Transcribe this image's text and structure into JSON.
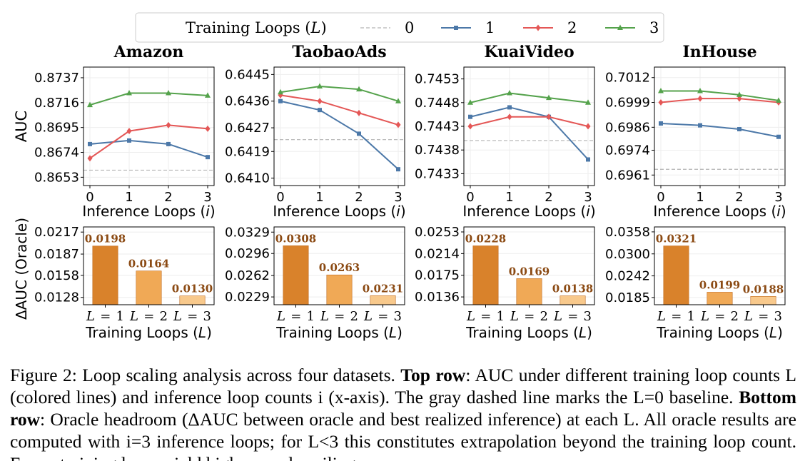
{
  "legend": {
    "title": "Training Loops (L)",
    "entries": [
      {
        "label": "0",
        "color": "#b3b3b3",
        "marker": "none",
        "dashed": true
      },
      {
        "label": "1",
        "color": "#4c78a8",
        "marker": "square"
      },
      {
        "label": "2",
        "color": "#e45756",
        "marker": "diamond"
      },
      {
        "label": "3",
        "color": "#54a24b",
        "marker": "triangle"
      }
    ]
  },
  "chart_data": [
    {
      "type": "line",
      "title": "Amazon",
      "xlabel": "Inference Loops (i)",
      "ylabel": "AUC",
      "x": [
        0,
        1,
        2,
        3
      ],
      "yticks": [
        "0.8737",
        "0.8716",
        "0.8695",
        "0.8674",
        "0.8653"
      ],
      "ylim": [
        0.8646,
        0.8746
      ],
      "baseline": {
        "name": "0",
        "value": 0.8659
      },
      "series": [
        {
          "name": "1",
          "values": [
            0.8681,
            0.8684,
            0.8681,
            0.867
          ]
        },
        {
          "name": "2",
          "values": [
            0.8669,
            0.8692,
            0.8697,
            0.8694
          ]
        },
        {
          "name": "3",
          "values": [
            0.8714,
            0.8724,
            0.8724,
            0.8722
          ]
        }
      ]
    },
    {
      "type": "line",
      "title": "TaobaoAds",
      "xlabel": "Inference Loops (i)",
      "ylabel": "",
      "x": [
        0,
        1,
        2,
        3
      ],
      "yticks": [
        "0.6445",
        "0.6436",
        "0.6427",
        "0.6419",
        "0.6410"
      ],
      "ylim": [
        0.64075,
        0.64475
      ],
      "baseline": {
        "name": "0",
        "value": 0.6423
      },
      "series": [
        {
          "name": "1",
          "values": [
            0.6436,
            0.6433,
            0.6425,
            0.6413
          ]
        },
        {
          "name": "2",
          "values": [
            0.6438,
            0.6436,
            0.6432,
            0.6428
          ]
        },
        {
          "name": "3",
          "values": [
            0.6439,
            0.6441,
            0.644,
            0.6436
          ]
        }
      ]
    },
    {
      "type": "line",
      "title": "KuaiVideo",
      "xlabel": "Inference Loops (i)",
      "ylabel": "",
      "x": [
        0,
        1,
        2,
        3
      ],
      "yticks": [
        "0.7453",
        "0.7448",
        "0.7443",
        "0.7438",
        "0.7433"
      ],
      "ylim": [
        0.74305,
        0.74555
      ],
      "baseline": {
        "name": "0",
        "value": 0.744
      },
      "series": [
        {
          "name": "1",
          "values": [
            0.7445,
            0.7447,
            0.7445,
            0.7436
          ]
        },
        {
          "name": "2",
          "values": [
            0.7443,
            0.7445,
            0.7445,
            0.7443
          ]
        },
        {
          "name": "3",
          "values": [
            0.7448,
            0.745,
            0.7449,
            0.7448
          ]
        }
      ]
    },
    {
      "type": "line",
      "title": "InHouse",
      "xlabel": "Inference Loops (i)",
      "ylabel": "",
      "x": [
        0,
        1,
        2,
        3
      ],
      "yticks": [
        "0.7012",
        "0.6999",
        "0.6986",
        "0.6974",
        "0.6961"
      ],
      "ylim": [
        0.69555,
        0.70175
      ],
      "baseline": {
        "name": "0",
        "value": 0.6964
      },
      "series": [
        {
          "name": "1",
          "values": [
            0.6988,
            0.6987,
            0.6985,
            0.6981
          ]
        },
        {
          "name": "2",
          "values": [
            0.6999,
            0.7001,
            0.7001,
            0.6999
          ]
        },
        {
          "name": "3",
          "values": [
            0.7005,
            0.7005,
            0.7003,
            0.7
          ]
        }
      ]
    },
    {
      "type": "bar",
      "title": "",
      "xlabel": "Training Loops (L)",
      "ylabel": "ΔAUC (Oracle)",
      "categories": [
        "L = 1",
        "L = 2",
        "L = 3"
      ],
      "values": [
        0.0198,
        0.0164,
        0.013
      ],
      "labels": [
        "0.0198",
        "0.0164",
        "0.0130"
      ],
      "yticks": [
        "0.0217",
        "0.0187",
        "0.0158",
        "0.0128"
      ],
      "ylim": [
        0.0118,
        0.0224
      ]
    },
    {
      "type": "bar",
      "title": "",
      "xlabel": "Training Loops (L)",
      "ylabel": "",
      "categories": [
        "L = 1",
        "L = 2",
        "L = 3"
      ],
      "values": [
        0.0308,
        0.0263,
        0.0231
      ],
      "labels": [
        "0.0308",
        "0.0263",
        "0.0231"
      ],
      "yticks": [
        "0.0329",
        "0.0296",
        "0.0262",
        "0.0229"
      ],
      "ylim": [
        0.0217,
        0.0337
      ]
    },
    {
      "type": "bar",
      "title": "",
      "xlabel": "Training Loops (L)",
      "ylabel": "",
      "categories": [
        "L = 1",
        "L = 2",
        "L = 3"
      ],
      "values": [
        0.0228,
        0.0169,
        0.0138
      ],
      "labels": [
        "0.0228",
        "0.0169",
        "0.0138"
      ],
      "yticks": [
        "0.0253",
        "0.0214",
        "0.0175",
        "0.0136"
      ],
      "ylim": [
        0.0122,
        0.0262
      ]
    },
    {
      "type": "bar",
      "title": "",
      "xlabel": "Training Loops (L)",
      "ylabel": "",
      "categories": [
        "L = 1",
        "L = 2",
        "L = 3"
      ],
      "values": [
        0.0321,
        0.0199,
        0.0188
      ],
      "labels": [
        "0.0321",
        "0.0199",
        "0.0188"
      ],
      "yticks": [
        "0.0358",
        "0.0300",
        "0.0242",
        "0.0185"
      ],
      "ylim": [
        0.0166,
        0.0371
      ]
    }
  ],
  "bar_colors": [
    "#d9822b",
    "#f0a956",
    "#f8c98c"
  ],
  "bar_label_color": "#8b4a13",
  "caption": {
    "figure_label": "Figure 2: Loop scaling analysis across four datasets.",
    "top_row_label": "Top row",
    "top_row_text": ": AUC under different training loop counts L (colored lines) and inference loop counts i (x-axis). The gray dashed line marks the L=0 baseline.",
    "bottom_row_label": "Bottom row",
    "bottom_row_text": ": Oracle headroom (ΔAUC between oracle and best realized inference) at each L. All oracle results are computed with i=3 inference loops; for L<3 this constitutes extrapolation beyond the training loop count. Fewer training loops yield higher oracle ceilings."
  }
}
